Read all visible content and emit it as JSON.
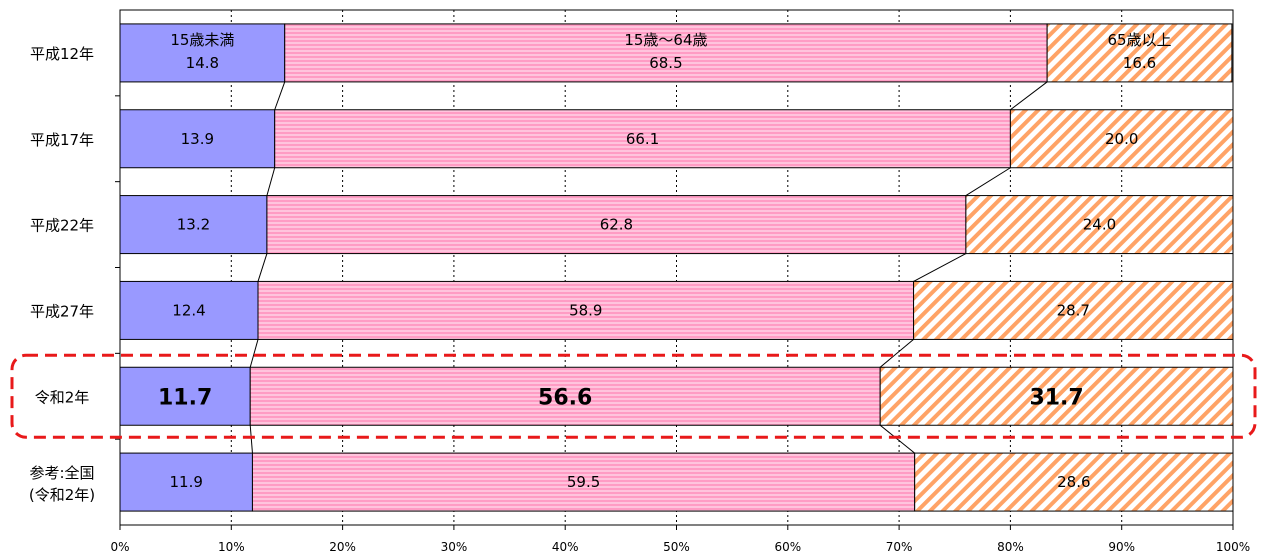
{
  "chart_data": {
    "type": "bar",
    "orientation": "horizontal",
    "stacked": true,
    "percent_stacked": true,
    "categories": [
      "平成12年",
      "平成17年",
      "平成22年",
      "平成27年",
      "令和2年",
      [
        "参考:全国",
        "(令和2年)"
      ]
    ],
    "series": [
      {
        "name": "15歳未満",
        "values": [
          14.8,
          13.9,
          13.2,
          12.4,
          11.7,
          11.9
        ],
        "color": "#9999ff"
      },
      {
        "name": "15歳～64歳",
        "values": [
          68.5,
          66.1,
          62.8,
          58.9,
          56.6,
          59.5
        ],
        "color": "#ffaacc"
      },
      {
        "name": "65歳以上",
        "values": [
          16.6,
          20.0,
          24.0,
          28.7,
          31.7,
          28.6
        ],
        "color": "#ffb27f"
      }
    ],
    "xlim": [
      0,
      100
    ],
    "xticks": [
      "0%",
      "10%",
      "20%",
      "30%",
      "40%",
      "50%",
      "60%",
      "70%",
      "80%",
      "90%",
      "100%"
    ],
    "grid": true,
    "series_lines": true,
    "highlighted_category": "令和2年",
    "highlight_color": "#e8191a"
  }
}
